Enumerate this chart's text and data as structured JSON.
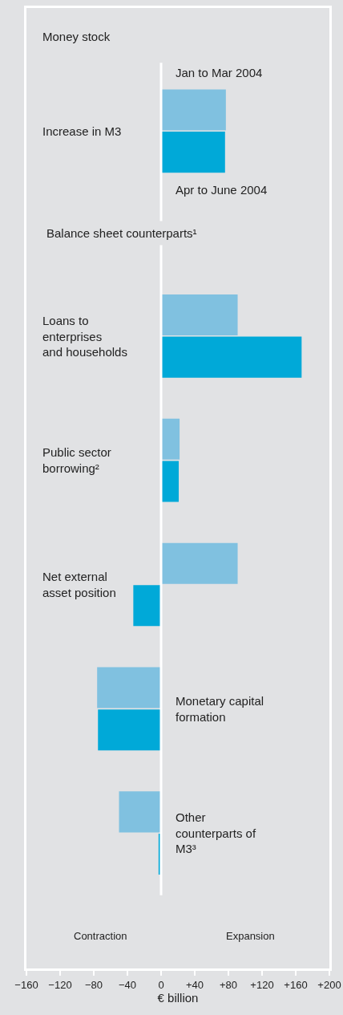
{
  "chart_data": {
    "type": "bar",
    "orientation": "horizontal",
    "xlabel": "€ billion",
    "categories": [
      "Increase in M3",
      "Loans to enterprises and households",
      "Public sector borrowing²",
      "Net external asset position",
      "Monetary capital formation",
      "Other counterparts of M3³"
    ],
    "series": [
      {
        "name": "Jan to Mar 2004",
        "color": "#80c1e0",
        "values": [
          77,
          91,
          22,
          91,
          -76,
          -50
        ]
      },
      {
        "name": "Apr to June 2004",
        "color": "#00a9d8",
        "values": [
          76,
          167,
          21,
          -33,
          -75,
          -3
        ]
      }
    ],
    "xlim": [
      -160,
      200
    ],
    "xticks": [
      {
        "value": -160,
        "label": "−160"
      },
      {
        "value": -120,
        "label": "−120"
      },
      {
        "value": -80,
        "label": "−80"
      },
      {
        "value": -40,
        "label": "−40"
      },
      0,
      {
        "value": 40,
        "label": "+40"
      },
      {
        "value": 80,
        "label": "+80"
      },
      {
        "value": 120,
        "label": "+120"
      },
      {
        "value": 160,
        "label": "+160"
      },
      {
        "value": 200,
        "label": "+200"
      }
    ],
    "ref_lines": [
      {
        "axis": "x",
        "value": 0,
        "color": "#ffffff"
      }
    ],
    "grid": false,
    "legend": false,
    "tick_labels": "x",
    "annotations": [
      "Money stock",
      "Balance sheet counterparts¹",
      "Contraction",
      "Expansion"
    ]
  }
}
